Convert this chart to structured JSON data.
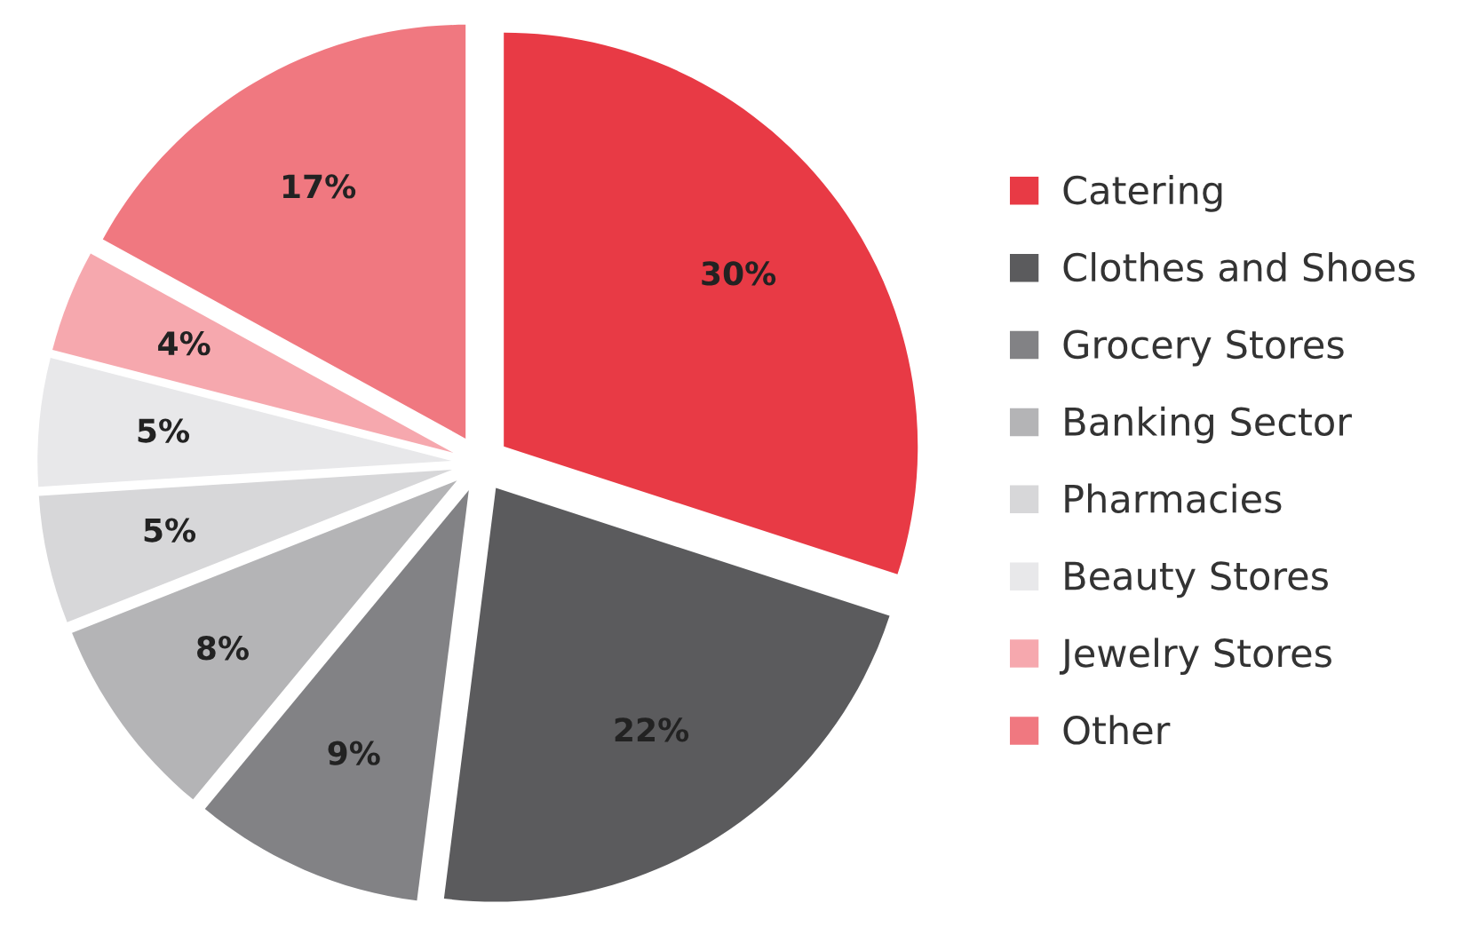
{
  "chart_data": {
    "type": "pie",
    "categories": [
      "Catering",
      "Clothes and Shoes",
      "Grocery Stores",
      "Banking Sector",
      "Pharmacies",
      "Beauty Stores",
      "Jewelry Stores",
      "Other"
    ],
    "values": [
      30,
      22,
      9,
      8,
      5,
      5,
      4,
      17
    ],
    "colors": [
      "#e83a45",
      "#5b5b5d",
      "#828285",
      "#b4b4b6",
      "#d7d7d9",
      "#e8e8ea",
      "#f6a8ae",
      "#f07880"
    ],
    "value_labels": [
      "30%",
      "22%",
      "9%",
      "8%",
      "5%",
      "5%",
      "4%",
      "17%"
    ],
    "legend": "right"
  }
}
